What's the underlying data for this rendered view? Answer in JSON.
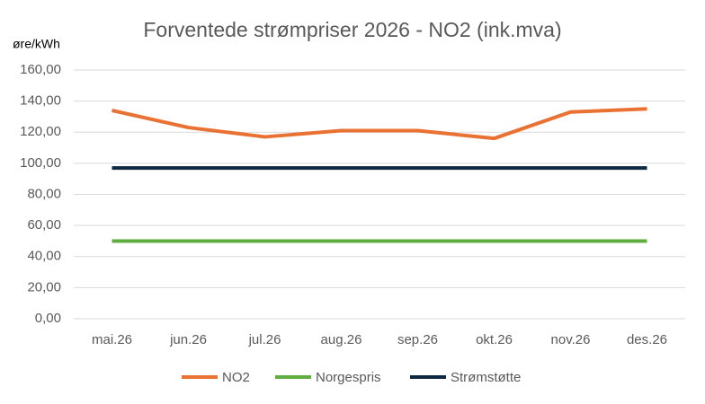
{
  "chart_data": {
    "type": "line",
    "title": "Forventede strømpriser 2026 - NO2 (ink.mva)",
    "y_label": "øre/kWh",
    "categories": [
      "mai.26",
      "jun.26",
      "jul.26",
      "aug.26",
      "sep.26",
      "okt.26",
      "nov.26",
      "des.26"
    ],
    "series": [
      {
        "name": "NO2",
        "color": "#e97132",
        "values": [
          134,
          123,
          117,
          121,
          121,
          116,
          133,
          135
        ]
      },
      {
        "name": "Norgespris",
        "color": "#5fae3f",
        "values": [
          50,
          50,
          50,
          50,
          50,
          50,
          50,
          50
        ]
      },
      {
        "name": "Strømstøtte",
        "color": "#0e2841",
        "values": [
          97,
          97,
          97,
          97,
          97,
          97,
          97,
          97
        ]
      }
    ],
    "ylim": [
      0,
      160
    ],
    "yticks": [
      {
        "value": 0,
        "label": "0,00"
      },
      {
        "value": 20,
        "label": "20,00"
      },
      {
        "value": 40,
        "label": "40,00"
      },
      {
        "value": 60,
        "label": "60,00"
      },
      {
        "value": 80,
        "label": "80,00"
      },
      {
        "value": 100,
        "label": "100,00"
      },
      {
        "value": 120,
        "label": "120,00"
      },
      {
        "value": 140,
        "label": "140,00"
      },
      {
        "value": 160,
        "label": "160,00"
      }
    ],
    "grid": true,
    "legend": "bottom"
  }
}
